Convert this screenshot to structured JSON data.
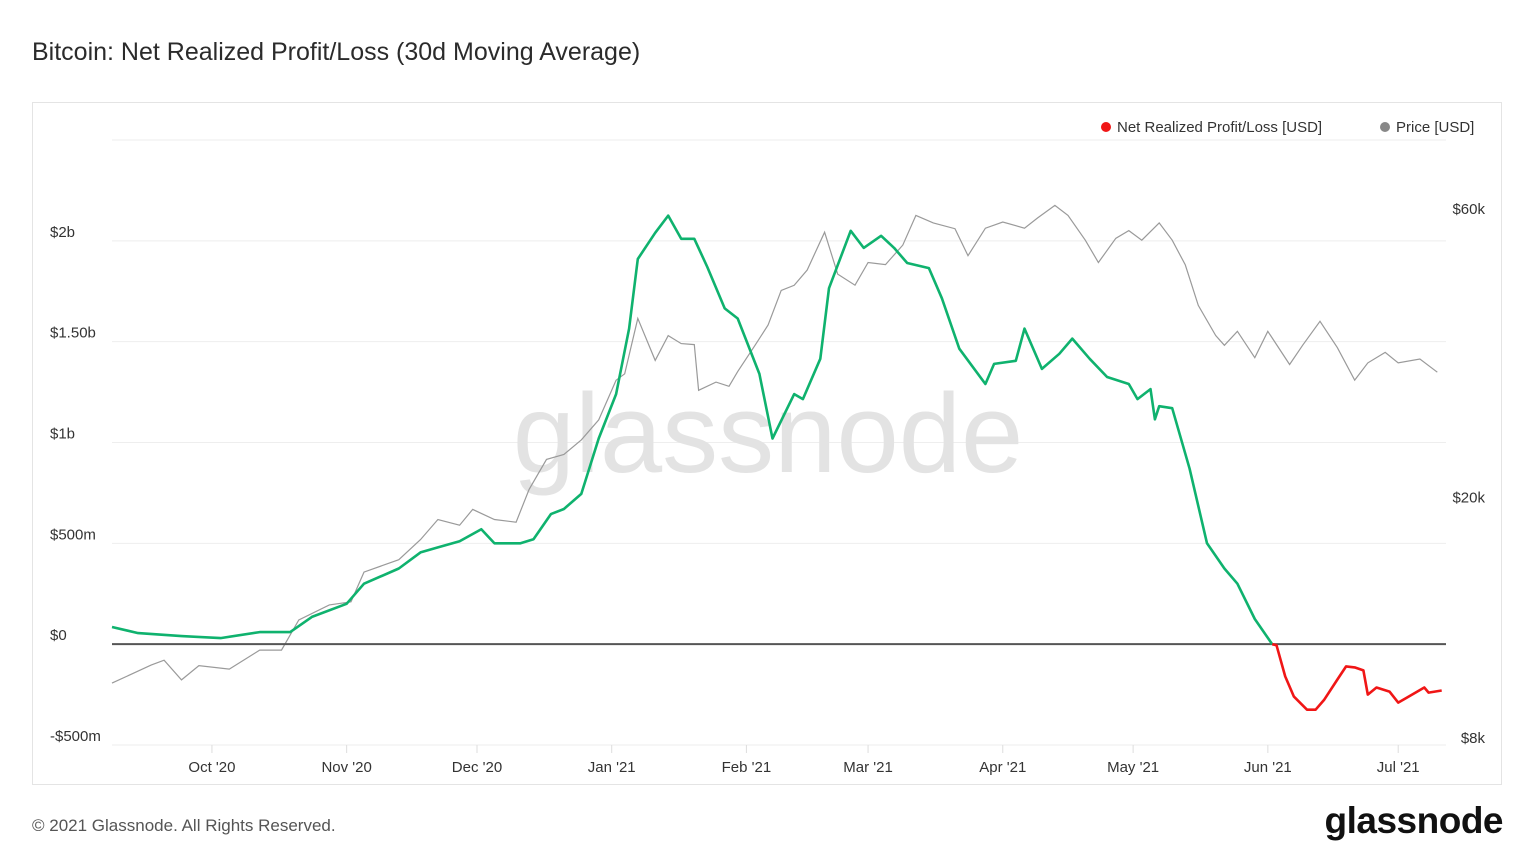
{
  "chart_data": {
    "type": "line",
    "title": "Bitcoin: Net Realized Profit/Loss (30d Moving Average)",
    "x_unit": "days since 2020-09-08",
    "x_range": [
      0,
      307
    ],
    "x_ticks": [
      {
        "day": 23,
        "label": "Oct '20"
      },
      {
        "day": 54,
        "label": "Nov '20"
      },
      {
        "day": 84,
        "label": "Dec '20"
      },
      {
        "day": 115,
        "label": "Jan '21"
      },
      {
        "day": 146,
        "label": "Feb '21"
      },
      {
        "day": 174,
        "label": "Mar '21"
      },
      {
        "day": 205,
        "label": "Apr '21"
      },
      {
        "day": 235,
        "label": "May '21"
      },
      {
        "day": 266,
        "label": "Jun '21"
      },
      {
        "day": 296,
        "label": "Jul '21"
      }
    ],
    "y_left": {
      "range_musd": [
        -500,
        2500
      ],
      "ticks": [
        {
          "v": -500,
          "label": "-$500m"
        },
        {
          "v": 0,
          "label": "$0"
        },
        {
          "v": 500,
          "label": "$500m"
        },
        {
          "v": 1000,
          "label": "$1b"
        },
        {
          "v": 1500,
          "label": "$1.50b"
        },
        {
          "v": 2000,
          "label": "$2b"
        }
      ]
    },
    "y_right": {
      "scale": "log",
      "range_usd": [
        8000,
        65000
      ],
      "ticks": [
        {
          "v": 8000,
          "label": "$8k"
        },
        {
          "v": 20000,
          "label": "$20k"
        },
        {
          "v": 60000,
          "label": "$60k"
        }
      ]
    },
    "legend": {
      "placement": "top-right",
      "items": [
        {
          "label": "Net Realized Profit/Loss [USD]",
          "color": "#f01616"
        },
        {
          "label": "Price [USD]",
          "color": "#888888"
        }
      ]
    },
    "colors": {
      "positive": "#0fb26e",
      "negative": "#f01616",
      "price": "#9a9a9a",
      "zero_line": "#555555"
    },
    "watermark": "glassnode",
    "series": [
      {
        "name": "Net Realized Profit/Loss [USD]",
        "unit": "million USD",
        "points": [
          [
            0,
            85
          ],
          [
            6,
            55
          ],
          [
            16,
            40
          ],
          [
            25,
            30
          ],
          [
            34,
            60
          ],
          [
            41,
            60
          ],
          [
            46,
            135
          ],
          [
            54,
            200
          ],
          [
            58,
            300
          ],
          [
            66,
            375
          ],
          [
            71,
            455
          ],
          [
            75,
            480
          ],
          [
            80,
            510
          ],
          [
            85,
            570
          ],
          [
            88,
            500
          ],
          [
            94,
            500
          ],
          [
            97,
            520
          ],
          [
            101,
            645
          ],
          [
            104,
            670
          ],
          [
            108,
            745
          ],
          [
            112,
            1020
          ],
          [
            116,
            1240
          ],
          [
            119,
            1565
          ],
          [
            121,
            1910
          ],
          [
            125,
            2040
          ],
          [
            128,
            2125
          ],
          [
            131,
            2010
          ],
          [
            134,
            2010
          ],
          [
            137,
            1870
          ],
          [
            141,
            1665
          ],
          [
            144,
            1615
          ],
          [
            149,
            1340
          ],
          [
            152,
            1020
          ],
          [
            157,
            1240
          ],
          [
            159,
            1215
          ],
          [
            163,
            1415
          ],
          [
            165,
            1765
          ],
          [
            170,
            2050
          ],
          [
            173,
            1965
          ],
          [
            177,
            2025
          ],
          [
            180,
            1965
          ],
          [
            183,
            1890
          ],
          [
            188,
            1865
          ],
          [
            191,
            1715
          ],
          [
            195,
            1465
          ],
          [
            201,
            1290
          ],
          [
            203,
            1390
          ],
          [
            208,
            1405
          ],
          [
            210,
            1565
          ],
          [
            214,
            1365
          ],
          [
            218,
            1440
          ],
          [
            221,
            1515
          ],
          [
            225,
            1415
          ],
          [
            229,
            1325
          ],
          [
            234,
            1290
          ],
          [
            236,
            1215
          ],
          [
            239,
            1265
          ],
          [
            240,
            1115
          ],
          [
            241,
            1180
          ],
          [
            244,
            1170
          ],
          [
            248,
            870
          ],
          [
            252,
            500
          ],
          [
            256,
            375
          ],
          [
            259,
            300
          ],
          [
            263,
            125
          ],
          [
            267,
            0
          ],
          [
            268,
            -5
          ],
          [
            270,
            -160
          ],
          [
            272,
            -260
          ],
          [
            275,
            -325
          ],
          [
            277,
            -325
          ],
          [
            279,
            -275
          ],
          [
            282,
            -175
          ],
          [
            284,
            -110
          ],
          [
            286,
            -115
          ],
          [
            288,
            -130
          ],
          [
            289,
            -250
          ],
          [
            291,
            -215
          ],
          [
            294,
            -235
          ],
          [
            296,
            -290
          ],
          [
            298,
            -265
          ],
          [
            302,
            -215
          ],
          [
            303,
            -240
          ],
          [
            306,
            -230
          ]
        ]
      },
      {
        "name": "Price [USD]",
        "unit": "USD",
        "points": [
          [
            0,
            9860
          ],
          [
            9,
            10560
          ],
          [
            12,
            10760
          ],
          [
            16,
            9980
          ],
          [
            20,
            10540
          ],
          [
            27,
            10400
          ],
          [
            34,
            11180
          ],
          [
            39,
            11180
          ],
          [
            43,
            12540
          ],
          [
            50,
            13280
          ],
          [
            55,
            13440
          ],
          [
            58,
            15050
          ],
          [
            66,
            15780
          ],
          [
            71,
            17030
          ],
          [
            75,
            18390
          ],
          [
            80,
            17990
          ],
          [
            83,
            19110
          ],
          [
            88,
            18390
          ],
          [
            93,
            18200
          ],
          [
            96,
            20620
          ],
          [
            100,
            23120
          ],
          [
            104,
            23550
          ],
          [
            108,
            24900
          ],
          [
            112,
            26870
          ],
          [
            116,
            31260
          ],
          [
            118,
            32030
          ],
          [
            121,
            39560
          ],
          [
            125,
            33710
          ],
          [
            128,
            37050
          ],
          [
            131,
            35940
          ],
          [
            134,
            35800
          ],
          [
            135,
            30080
          ],
          [
            139,
            31030
          ],
          [
            142,
            30540
          ],
          [
            144,
            32300
          ],
          [
            148,
            35710
          ],
          [
            151,
            38570
          ],
          [
            154,
            44000
          ],
          [
            157,
            44860
          ],
          [
            160,
            47560
          ],
          [
            164,
            54920
          ],
          [
            167,
            46830
          ],
          [
            171,
            44890
          ],
          [
            174,
            48940
          ],
          [
            178,
            48540
          ],
          [
            182,
            52300
          ],
          [
            185,
            58560
          ],
          [
            189,
            56910
          ],
          [
            194,
            55660
          ],
          [
            197,
            50230
          ],
          [
            201,
            55770
          ],
          [
            205,
            57100
          ],
          [
            210,
            55770
          ],
          [
            213,
            57980
          ],
          [
            217,
            60830
          ],
          [
            220,
            58560
          ],
          [
            224,
            53270
          ],
          [
            227,
            48940
          ],
          [
            231,
            53660
          ],
          [
            234,
            55270
          ],
          [
            237,
            53270
          ],
          [
            241,
            56910
          ],
          [
            244,
            53270
          ],
          [
            247,
            48500
          ],
          [
            250,
            41560
          ],
          [
            254,
            37060
          ],
          [
            256,
            35700
          ],
          [
            259,
            37660
          ],
          [
            263,
            34060
          ],
          [
            266,
            37660
          ],
          [
            271,
            33190
          ],
          [
            274,
            35700
          ],
          [
            278,
            39120
          ],
          [
            282,
            35380
          ],
          [
            286,
            31270
          ],
          [
            289,
            33390
          ],
          [
            293,
            34750
          ],
          [
            296,
            33390
          ],
          [
            301,
            33880
          ],
          [
            305,
            32230
          ]
        ]
      }
    ]
  },
  "footer": {
    "copyright": "© 2021 Glassnode. All Rights Reserved.",
    "logo": "glassnode"
  }
}
